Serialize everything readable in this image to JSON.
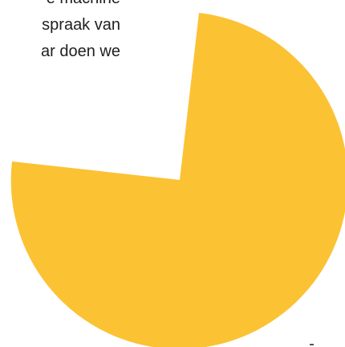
{
  "content": {
    "lines": [
      "e machine",
      "spraak van",
      "ar doen we"
    ]
  },
  "graphic": {
    "type": "pie-shape",
    "colors": {
      "slice": "#fbc233",
      "background": "#ffffff",
      "text": "#1f1f1f"
    }
  }
}
